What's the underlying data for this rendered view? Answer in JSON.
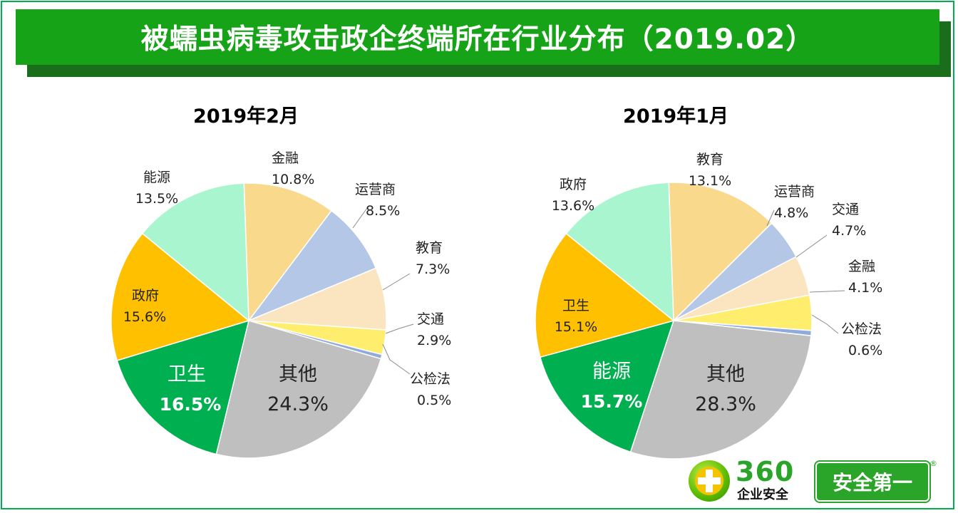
{
  "title": "被蠕虫病毒攻击政企终端所在行业分布（2019.02）",
  "logo": {
    "brand_number": "360",
    "brand_subtitle": "企业安全",
    "slogan": "安全第一",
    "registered_mark": "®"
  },
  "chart_data": [
    {
      "type": "pie",
      "title": "2019年2月",
      "start_angle_deg": 92,
      "slices": [
        {
          "label": "金融",
          "value": 10.8,
          "value_text": "10.8%",
          "color": "#f9d98c"
        },
        {
          "label": "运营商",
          "value": 8.5,
          "value_text": "8.5%",
          "color": "#b4c7e7"
        },
        {
          "label": "教育",
          "value": 7.3,
          "value_text": "7.3%",
          "color": "#fbe5c0"
        },
        {
          "label": "交通",
          "value": 2.9,
          "value_text": "2.9%",
          "color": "#ffee6e"
        },
        {
          "label": "公检法",
          "value": 0.5,
          "value_text": "0.5%",
          "color": "#8faadc"
        },
        {
          "label": "其他",
          "value": 24.3,
          "value_text": "24.3%",
          "color": "#bfbfbf"
        },
        {
          "label": "卫生",
          "value": 16.5,
          "value_text": "16.5%",
          "color": "#00b050"
        },
        {
          "label": "政府",
          "value": 15.6,
          "value_text": "15.6%",
          "color": "#ffc000"
        },
        {
          "label": "能源",
          "value": 13.5,
          "value_text": "13.5%",
          "color": "#a9f5cf"
        }
      ]
    },
    {
      "type": "pie",
      "title": "2019年1月",
      "start_angle_deg": 92,
      "slices": [
        {
          "label": "教育",
          "value": 13.1,
          "value_text": "13.1%",
          "color": "#f9d98c"
        },
        {
          "label": "运营商",
          "value": 4.8,
          "value_text": "4.8%",
          "color": "#b4c7e7"
        },
        {
          "label": "交通",
          "value": 4.7,
          "value_text": "4.7%",
          "color": "#fbe5c0"
        },
        {
          "label": "金融",
          "value": 4.1,
          "value_text": "4.1%",
          "color": "#ffee6e"
        },
        {
          "label": "公检法",
          "value": 0.6,
          "value_text": "0.6%",
          "color": "#8faadc"
        },
        {
          "label": "其他",
          "value": 28.3,
          "value_text": "28.3%",
          "color": "#bfbfbf"
        },
        {
          "label": "能源",
          "value": 15.7,
          "value_text": "15.7%",
          "color": "#00b050"
        },
        {
          "label": "卫生",
          "value": 15.1,
          "value_text": "15.1%",
          "color": "#ffc000"
        },
        {
          "label": "政府",
          "value": 13.6,
          "value_text": "13.6%",
          "color": "#a9f5cf"
        }
      ]
    }
  ]
}
